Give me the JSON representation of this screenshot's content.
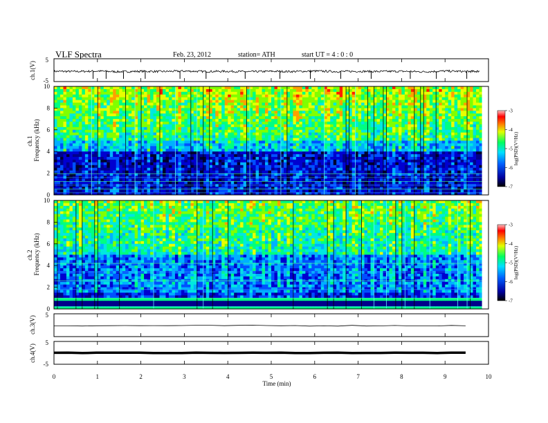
{
  "header": {
    "title": "VLF  Spectra",
    "date": "Feb. 23, 2012",
    "station": "station= ATH",
    "start": "start  UT  =   4  : 0  : 0"
  },
  "colors": {
    "spectrogram_low": "#00008b",
    "spectrogram_mid": "#00ff80",
    "spectrogram_high": "#ff0000",
    "trace": "#000000",
    "frame": "#000000"
  },
  "chart_data": [
    {
      "type": "line",
      "panel": "ch1-waveform",
      "ylabel": "ch.1(V)",
      "ylim": [
        -5,
        5
      ],
      "yticks": [
        "5",
        "-5"
      ],
      "x": [
        0,
        0.5,
        1,
        1.5,
        2,
        2.5,
        3,
        3.5,
        4,
        4.5,
        5,
        5.5,
        6,
        6.5,
        7,
        7.5,
        8,
        8.5,
        9,
        9.5,
        9.8
      ],
      "values": [
        -0.5,
        -0.6,
        -0.4,
        -0.7,
        -0.5,
        -0.6,
        -0.4,
        -0.6,
        -0.5,
        -0.7,
        -0.5,
        -0.6,
        -0.4,
        -0.6,
        -0.5,
        -0.6,
        -0.5,
        -0.7,
        -0.4,
        -0.6,
        -0.5
      ],
      "spikes_x": [
        0.9,
        1.2,
        1.6,
        2.1,
        2.9,
        3.5,
        4.4,
        5.2,
        5.9,
        6.6,
        7.3,
        8.2,
        8.8,
        9.5
      ]
    },
    {
      "type": "heatmap",
      "panel": "ch1-spectrogram",
      "ylabel": "ch.1\nFrequency  (kHz)",
      "ylim": [
        0,
        10
      ],
      "yticks": [
        "0",
        "2",
        "4",
        "6",
        "8",
        "10"
      ],
      "colorbar": {
        "label": "log(PSD)(V²/Hz)",
        "range": [
          -7,
          -3
        ],
        "ticks": [
          "-3",
          "-4",
          "-5",
          "-6",
          "-7"
        ]
      }
    },
    {
      "type": "heatmap",
      "panel": "ch2-spectrogram",
      "ylabel": "ch.2\nFrequency  (kHz)",
      "ylim": [
        0,
        10
      ],
      "yticks": [
        "0",
        "2",
        "4",
        "6",
        "8",
        "10"
      ],
      "colorbar": {
        "label": "log(PSD)(V²/Hz)",
        "range": [
          -7,
          -3
        ],
        "ticks": [
          "-3",
          "-4",
          "-5",
          "-6",
          "-7"
        ]
      }
    },
    {
      "type": "line",
      "panel": "ch3-waveform",
      "ylabel": "ch.3(V)",
      "ylim": [
        -5,
        5
      ],
      "yticks": [
        "5"
      ],
      "x": [
        0,
        9.8
      ],
      "values": [
        -0.2,
        -0.2
      ]
    },
    {
      "type": "line",
      "panel": "ch4-waveform",
      "ylabel": "ch.4(V)",
      "ylim": [
        -5,
        5
      ],
      "yticks": [
        "5",
        "-5"
      ],
      "x": [
        0,
        9.8
      ],
      "values": [
        0,
        0
      ]
    }
  ],
  "x_axis": {
    "label": "Time  (min)",
    "range": [
      0,
      10
    ],
    "ticks": [
      "0",
      "1",
      "2",
      "3",
      "4",
      "5",
      "6",
      "7",
      "8",
      "9",
      "10"
    ]
  }
}
